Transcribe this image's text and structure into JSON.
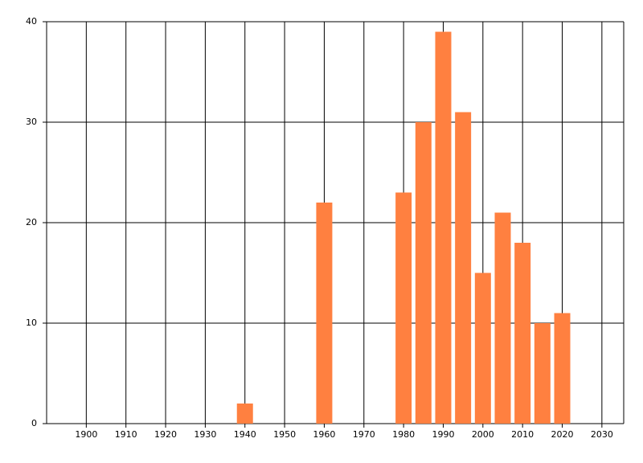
{
  "chart_data": {
    "type": "bar",
    "x": [
      1940,
      1960,
      1980,
      1985,
      1990,
      1995,
      2000,
      2005,
      2010,
      2015,
      2020
    ],
    "values": [
      2,
      22,
      23,
      30,
      39,
      31,
      15,
      21,
      18,
      10,
      11
    ],
    "color": "#ff8040",
    "xlim": [
      1890,
      2035.5
    ],
    "xticks": [
      1900,
      1910,
      1920,
      1930,
      1940,
      1950,
      1960,
      1970,
      1980,
      1990,
      2000,
      2010,
      2020,
      2030
    ],
    "ylim": [
      0,
      40
    ],
    "yticks": [
      0,
      10,
      20,
      30,
      40
    ],
    "grid": true
  }
}
